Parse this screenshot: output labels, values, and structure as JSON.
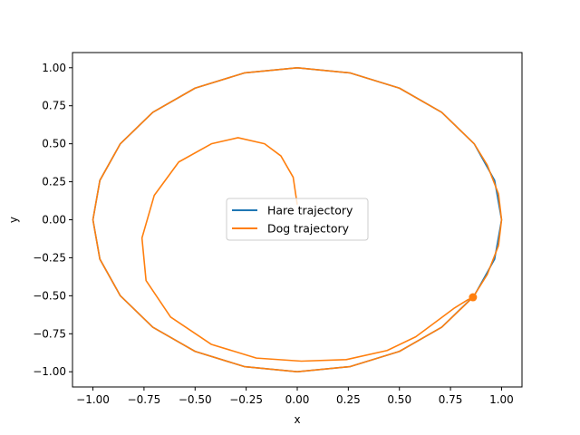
{
  "chart_data": {
    "type": "line",
    "title": "",
    "xlabel": "x",
    "ylabel": "y",
    "xlim": [
      -1.1,
      1.1
    ],
    "ylim": [
      -1.1,
      1.1
    ],
    "x_ticks": [
      -1.0,
      -0.75,
      -0.5,
      -0.25,
      0.0,
      0.25,
      0.5,
      0.75,
      1.0
    ],
    "y_ticks": [
      -1.0,
      -0.75,
      -0.5,
      -0.25,
      0.0,
      0.25,
      0.5,
      0.75,
      1.0
    ],
    "x_tick_labels": [
      "−1.00",
      "−0.75",
      "−0.50",
      "−0.25",
      "0.00",
      "0.25",
      "0.50",
      "0.75",
      "1.00"
    ],
    "y_tick_labels": [
      "−1.00",
      "−0.75",
      "−0.50",
      "−0.25",
      "0.00",
      "0.25",
      "0.50",
      "0.75",
      "1.00"
    ],
    "grid": false,
    "legend_position": "center",
    "series": [
      {
        "name": "Hare trajectory",
        "color": "#1f77b4",
        "x": [
          1.0,
          0.966,
          0.866,
          0.707,
          0.5,
          0.259,
          0.0,
          -0.259,
          -0.5,
          -0.707,
          -0.866,
          -0.966,
          -1.0,
          -0.966,
          -0.866,
          -0.707,
          -0.5,
          -0.259,
          0.0,
          0.259,
          0.5,
          0.707,
          0.866,
          0.966,
          1.0
        ],
        "y": [
          0.0,
          0.259,
          0.5,
          0.707,
          0.866,
          0.966,
          1.0,
          0.966,
          0.866,
          0.707,
          0.5,
          0.259,
          0.0,
          -0.259,
          -0.5,
          -0.707,
          -0.866,
          -0.966,
          -1.0,
          -0.966,
          -0.866,
          -0.707,
          -0.5,
          -0.259,
          0.0
        ]
      },
      {
        "name": "Dog trajectory",
        "color": "#ff7f0e",
        "x": [
          0.0,
          -0.02,
          -0.08,
          -0.16,
          -0.29,
          -0.42,
          -0.58,
          -0.7,
          -0.76,
          -0.74,
          -0.62,
          -0.42,
          -0.2,
          0.02,
          0.24,
          0.44,
          0.58,
          0.68,
          0.77,
          0.83,
          0.86,
          0.93,
          0.985,
          1.0,
          0.985,
          0.93,
          0.866,
          0.707,
          0.5,
          0.259,
          0.0,
          -0.259,
          -0.5,
          -0.707,
          -0.866,
          -0.966,
          -1.0,
          -0.966,
          -0.866,
          -0.707,
          -0.5,
          -0.259,
          0.0,
          0.259,
          0.5,
          0.707,
          0.86
        ],
        "y": [
          0.1,
          0.28,
          0.42,
          0.5,
          0.54,
          0.5,
          0.38,
          0.16,
          -0.12,
          -0.4,
          -0.64,
          -0.82,
          -0.91,
          -0.93,
          -0.92,
          -0.86,
          -0.77,
          -0.67,
          -0.58,
          -0.53,
          -0.51,
          -0.36,
          -0.17,
          0.0,
          0.17,
          0.36,
          0.5,
          0.707,
          0.866,
          0.966,
          1.0,
          0.966,
          0.866,
          0.707,
          0.5,
          0.259,
          0.0,
          -0.259,
          -0.5,
          -0.707,
          -0.866,
          -0.966,
          -1.0,
          -0.966,
          -0.866,
          -0.707,
          -0.51
        ]
      }
    ],
    "marker_point": {
      "x": 0.86,
      "y": -0.51,
      "color": "#ff7f0e"
    }
  }
}
